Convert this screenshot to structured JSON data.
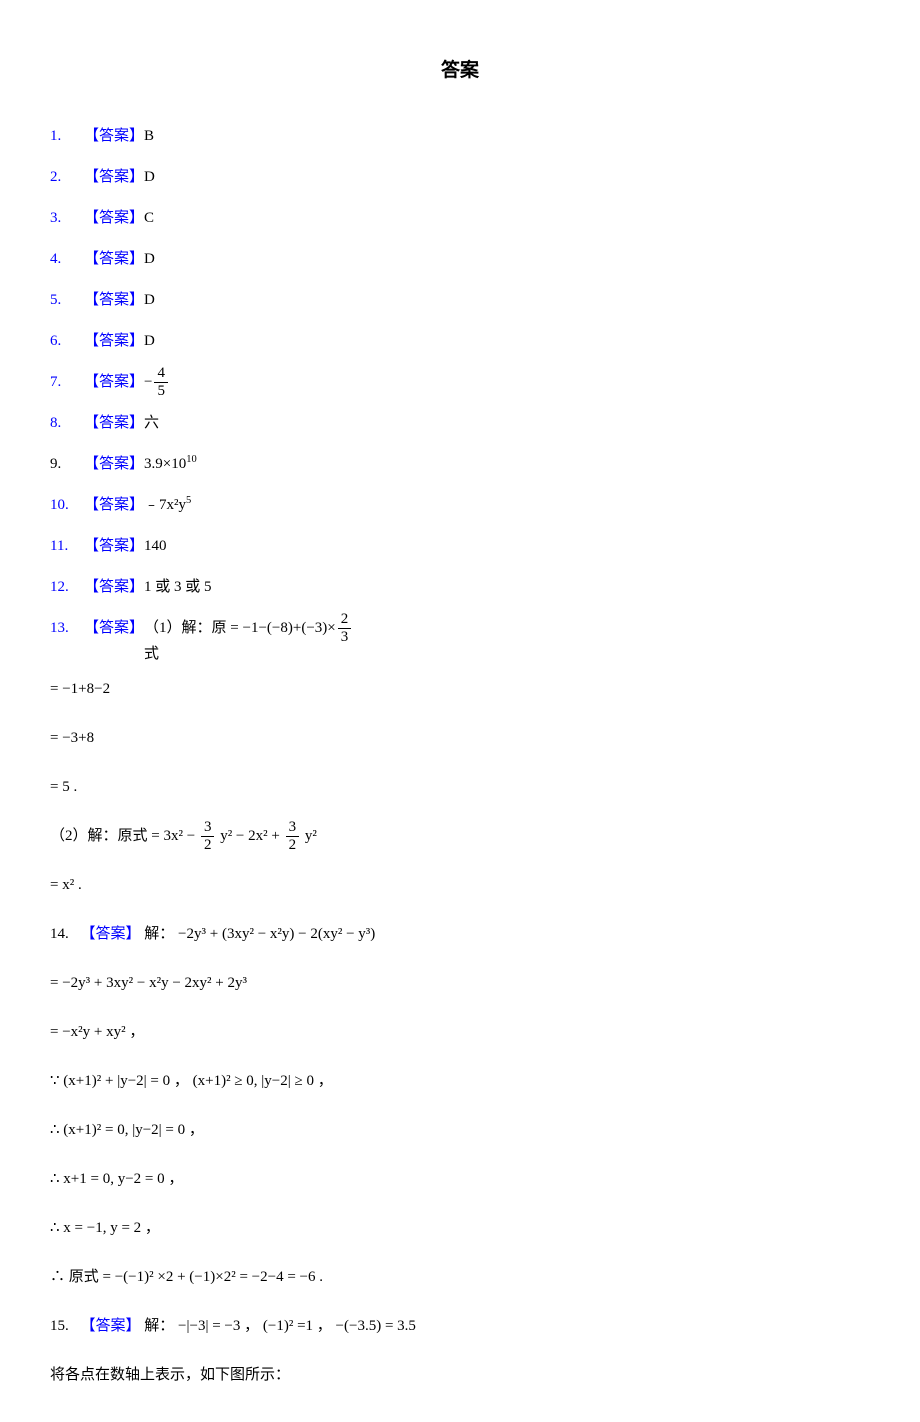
{
  "title": "答案",
  "tag": "【答案】",
  "items": {
    "a1": {
      "num": "1.",
      "val": "B"
    },
    "a2": {
      "num": "2.",
      "val": "D"
    },
    "a3": {
      "num": "3.",
      "val": "C"
    },
    "a4": {
      "num": "4.",
      "val": "D"
    },
    "a5": {
      "num": "5.",
      "val": "D"
    },
    "a6": {
      "num": "6.",
      "val": "D"
    },
    "a7": {
      "num": "7.",
      "frac_sign": "−",
      "frac_n": "4",
      "frac_d": "5"
    },
    "a8": {
      "num": "8.",
      "val": "六"
    },
    "a9": {
      "num": "9.",
      "val": "3.9×10",
      "exp": "10"
    },
    "a10": {
      "num": "10.",
      "val": "﹣7x²y",
      "exp": "5"
    },
    "a11": {
      "num": "11.",
      "val": "140"
    },
    "a12": {
      "num": "12.",
      "val": "1 或 3 或 5"
    }
  },
  "q13": {
    "num": "13.",
    "part1_label": "（1）解：原",
    "part1_sublabel": "式",
    "part1_eq": " = −1−(−8)+(−3)×",
    "frac_n": "2",
    "frac_d": "3",
    "line2": "= −1+8−2",
    "line3": "= −3+8",
    "line4": "= 5 .",
    "part2_label": "（2）解：原式",
    "part2_eq_a": " = 3x² − ",
    "part2_fn1": "3",
    "part2_fd1": "2",
    "part2_eq_b": " y² − 2x² + ",
    "part2_fn2": "3",
    "part2_fd2": "2",
    "part2_eq_c": " y²",
    "part2_line2": "= x² ."
  },
  "q14": {
    "num": "14.",
    "label": "解：",
    "eq1": " −2y³ + (3xy² − x²y) − 2(xy² − y³)",
    "eq2": "= −2y³ + 3xy² − x²y − 2xy² + 2y³",
    "eq3": "= −x²y + xy² ，",
    "eq4": "∵ (x+1)² + |y−2| = 0 ，  (x+1)² ≥ 0, |y−2| ≥ 0  ，",
    "eq5": "∴ (x+1)² = 0, |y−2| = 0  ，",
    "eq6": "∴  x+1 = 0,   y−2 = 0  ，",
    "eq7": "∴  x = −1,   y = 2  ，",
    "eq8_pre": "∴ 原式",
    "eq8": " = −(−1)² ×2 + (−1)×2² = −2−4 = −6   ."
  },
  "q15": {
    "num": "15.",
    "label": "解：",
    "eq": " −|−3| = −3 ， (−1)² =1 ，  −(−3.5) = 3.5",
    "final": "将各点在数轴上表示，如下图所示："
  },
  "colors": {
    "background": "#ffffff",
    "text": "#000000",
    "accent": "#0000ff"
  },
  "typography": {
    "title_fontsize": 19,
    "body_fontsize": 15,
    "line_height": 2.2
  }
}
